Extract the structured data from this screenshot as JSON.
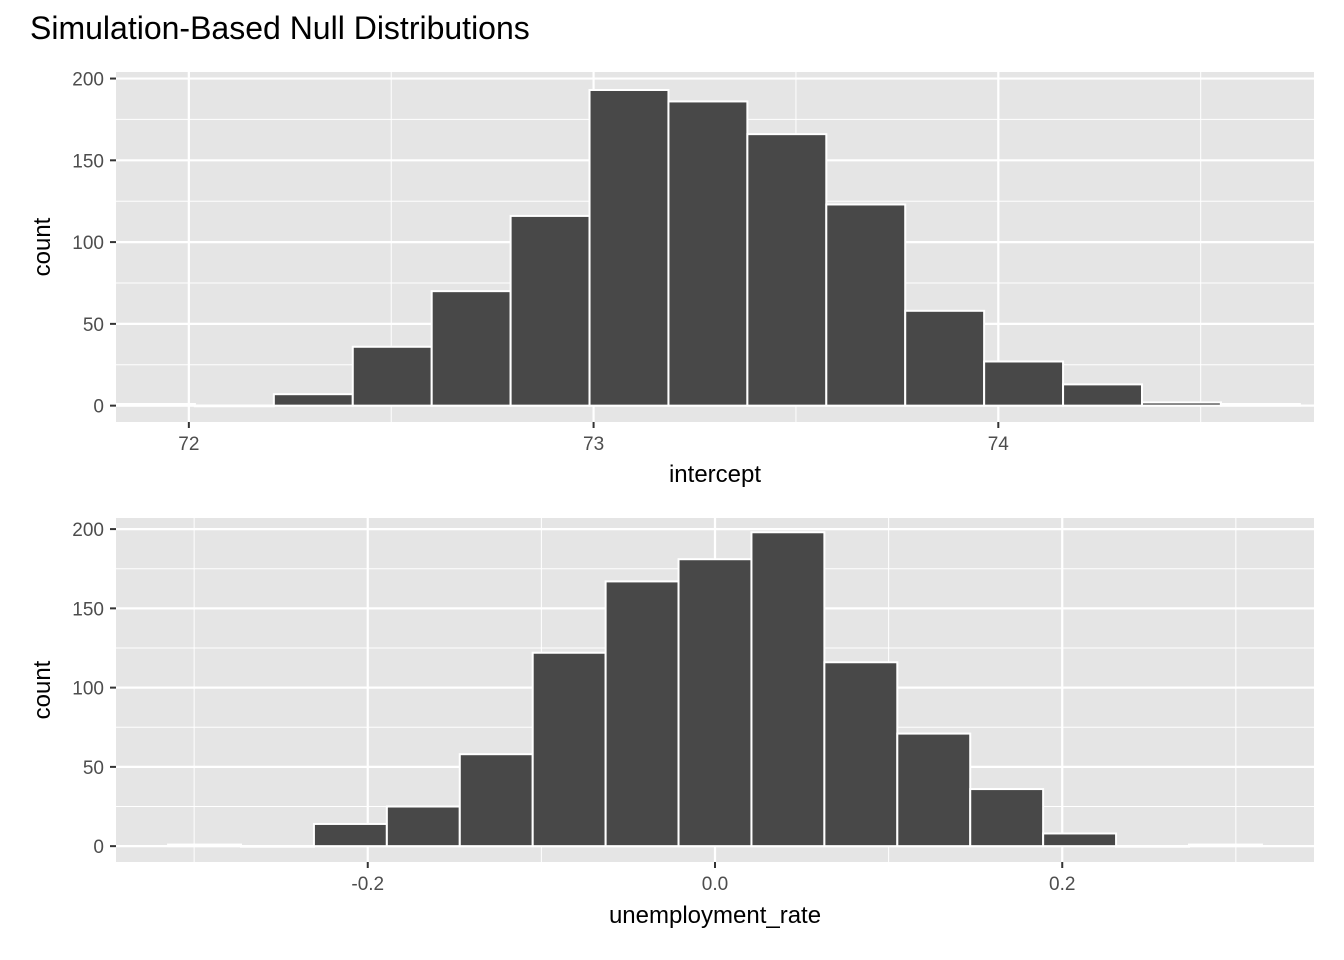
{
  "title": "Simulation-Based Null Distributions",
  "colors": {
    "panel_background": "#e5e5e5",
    "grid": "#ffffff",
    "bar_fill": "#484848",
    "bar_outline": "#ffffff",
    "tick_text": "#4d4d4d",
    "tick_mark": "#333333"
  },
  "chart_data": [
    {
      "type": "histogram",
      "xlabel": "intercept",
      "ylabel": "count",
      "xlim": [
        71.82,
        74.78
      ],
      "ylim": [
        -10,
        204
      ],
      "x_ticks": [
        72,
        73,
        74
      ],
      "x_tick_labels": [
        "72",
        "73",
        "74"
      ],
      "y_ticks": [
        0,
        50,
        100,
        150,
        200
      ],
      "y_tick_labels": [
        "0",
        "50",
        "100",
        "150",
        "200"
      ],
      "grid": true,
      "bin_edges": [
        71.82,
        72.015,
        72.21,
        72.405,
        72.6,
        72.795,
        72.99,
        73.185,
        73.38,
        73.575,
        73.77,
        73.965,
        74.16,
        74.355,
        74.55,
        74.745
      ],
      "counts": [
        1,
        0,
        7,
        36,
        70,
        116,
        193,
        186,
        166,
        123,
        58,
        27,
        13,
        2,
        1
      ]
    },
    {
      "type": "histogram",
      "xlabel": "unemployment_rate",
      "ylabel": "count",
      "xlim": [
        -0.345,
        0.345
      ],
      "ylim": [
        -10,
        207
      ],
      "x_ticks": [
        -0.2,
        0.0,
        0.2
      ],
      "x_tick_labels": [
        "-0.2",
        "0.0",
        "0.2"
      ],
      "y_ticks": [
        0,
        50,
        100,
        150,
        200
      ],
      "y_tick_labels": [
        "0",
        "50",
        "100",
        "150",
        "200"
      ],
      "grid": true,
      "bin_edges": [
        -0.315,
        -0.273,
        -0.231,
        -0.189,
        -0.147,
        -0.105,
        -0.063,
        -0.021,
        0.021,
        0.063,
        0.105,
        0.147,
        0.189,
        0.231,
        0.273,
        0.315
      ],
      "counts": [
        1,
        0,
        14,
        25,
        58,
        122,
        167,
        181,
        198,
        116,
        71,
        36,
        8,
        0,
        1
      ]
    }
  ]
}
